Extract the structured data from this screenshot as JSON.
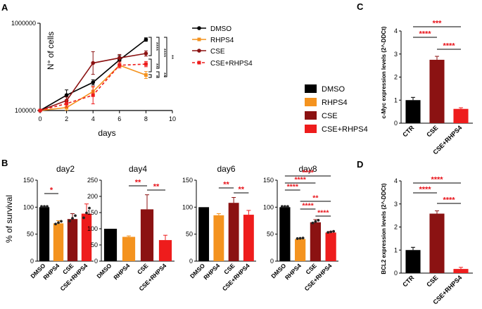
{
  "panels": {
    "A": "A",
    "B": "B",
    "C": "C",
    "D": "D"
  },
  "colors": {
    "DMSO": "#000000",
    "RHPS4": "#f4931f",
    "CSE": "#8b1212",
    "CSE_RHPS4": "#ee1c1c",
    "sig": "#e8141b"
  },
  "chart_data": [
    {
      "id": "A",
      "type": "line",
      "ylabel": "N° of cells",
      "xlabel": "days",
      "yscale": "log",
      "ylim": [
        100000,
        1000000
      ],
      "xlim": [
        0,
        10
      ],
      "xticks": [
        "0",
        "2",
        "4",
        "6",
        "8",
        "10"
      ],
      "yticks": [
        "100000",
        "1000000"
      ],
      "x": [
        0,
        2,
        4,
        6,
        8
      ],
      "series": [
        {
          "name": "DMSO",
          "values": [
            100000,
            150000,
            210000,
            380000,
            650000
          ]
        },
        {
          "name": "RHPS4",
          "values": [
            100000,
            108000,
            165000,
            330000,
            255000
          ]
        },
        {
          "name": "CSE",
          "values": [
            100000,
            130000,
            350000,
            400000,
            450000
          ]
        },
        {
          "name": "CSE+RHPS4",
          "values": [
            100000,
            120000,
            150000,
            330000,
            340000
          ]
        }
      ],
      "significance": [
        "****",
        "****",
        "**",
        "**",
        "*",
        "**"
      ]
    },
    {
      "id": "legend-main",
      "type": "legend",
      "items": [
        "DMSO",
        "RHPS4",
        "CSE",
        "CSE+RHPS4"
      ]
    },
    {
      "id": "B-day2",
      "type": "bar",
      "title": "day2",
      "ylabel": "% of survival",
      "categories": [
        "DMSO",
        "RHPS4",
        "CSE",
        "CSE+RHPS4"
      ],
      "values": [
        100,
        70,
        78,
        88
      ],
      "errors": [
        0,
        5,
        10,
        18
      ],
      "ylim": [
        0,
        150
      ],
      "yticks": [
        "0",
        "50",
        "100",
        "150"
      ],
      "significance": [
        {
          "from": "DMSO",
          "to": "RHPS4",
          "label": "*"
        }
      ]
    },
    {
      "id": "B-day4",
      "type": "bar",
      "title": "day4",
      "categories": [
        "DMSO",
        "RHPS4",
        "CSE",
        "CSE+RHPS4"
      ],
      "values": [
        100,
        75,
        160,
        65
      ],
      "errors": [
        0,
        3,
        45,
        15
      ],
      "ylim": [
        0,
        250
      ],
      "yticks": [
        "0",
        "50",
        "100",
        "150",
        "200",
        "250"
      ],
      "significance": [
        {
          "from": "RHPS4",
          "to": "CSE",
          "label": "**"
        },
        {
          "from": "CSE",
          "to": "CSE+RHPS4",
          "label": "**"
        }
      ]
    },
    {
      "id": "B-day6",
      "type": "bar",
      "title": "day6",
      "categories": [
        "DMSO",
        "RHPS4",
        "CSE",
        "CSE+RHPS4"
      ],
      "values": [
        100,
        85,
        108,
        86
      ],
      "errors": [
        0,
        3,
        10,
        8
      ],
      "ylim": [
        0,
        150
      ],
      "yticks": [
        "0",
        "50",
        "100",
        "150"
      ],
      "significance": [
        {
          "from": "RHPS4",
          "to": "CSE",
          "label": "**"
        },
        {
          "from": "CSE",
          "to": "CSE+RHPS4",
          "label": "**"
        }
      ]
    },
    {
      "id": "B-day8",
      "type": "bar",
      "title": "day8",
      "categories": [
        "DMSO",
        "RHPS4",
        "CSE",
        "CSE+RHPS4"
      ],
      "values": [
        100,
        41,
        72,
        53
      ],
      "errors": [
        0,
        1,
        5,
        2
      ],
      "ylim": [
        0,
        150
      ],
      "yticks": [
        "0",
        "50",
        "100",
        "150"
      ],
      "significance": [
        {
          "from": "DMSO",
          "to": "CSE+RHPS4",
          "label": "****"
        },
        {
          "from": "DMSO",
          "to": "CSE",
          "label": "****"
        },
        {
          "from": "DMSO",
          "to": "RHPS4",
          "label": "****"
        },
        {
          "from": "RHPS4",
          "to": "CSE+RHPS4",
          "label": "**"
        },
        {
          "from": "RHPS4",
          "to": "CSE",
          "label": "****"
        },
        {
          "from": "CSE",
          "to": "CSE+RHPS4",
          "label": "****"
        }
      ]
    },
    {
      "id": "C",
      "type": "bar",
      "ylabel": "c-Myc expression levels (2^-DDCt)",
      "categories": [
        "CTR",
        "CSE",
        "CSE+RHPS4"
      ],
      "values": [
        1.0,
        2.75,
        0.62
      ],
      "errors": [
        0.12,
        0.15,
        0.05
      ],
      "ylim": [
        0,
        4
      ],
      "yticks": [
        "0",
        "1",
        "2",
        "3",
        "4"
      ],
      "significance": [
        {
          "from": "CTR",
          "to": "CSE+RHPS4",
          "label": "***"
        },
        {
          "from": "CTR",
          "to": "CSE",
          "label": "****"
        },
        {
          "from": "CSE",
          "to": "CSE+RHPS4",
          "label": "****"
        }
      ]
    },
    {
      "id": "D",
      "type": "bar",
      "ylabel": "BCL2 expression levels (2^-DDCt)",
      "categories": [
        "CTR",
        "CSE",
        "CSE+RHPS4"
      ],
      "values": [
        1.0,
        2.58,
        0.18
      ],
      "errors": [
        0.12,
        0.12,
        0.07
      ],
      "ylim": [
        0,
        4
      ],
      "yticks": [
        "0",
        "1",
        "2",
        "3",
        "4"
      ],
      "significance": [
        {
          "from": "CTR",
          "to": "CSE+RHPS4",
          "label": "****"
        },
        {
          "from": "CTR",
          "to": "CSE",
          "label": "****"
        },
        {
          "from": "CSE",
          "to": "CSE+RHPS4",
          "label": "****"
        }
      ]
    }
  ]
}
